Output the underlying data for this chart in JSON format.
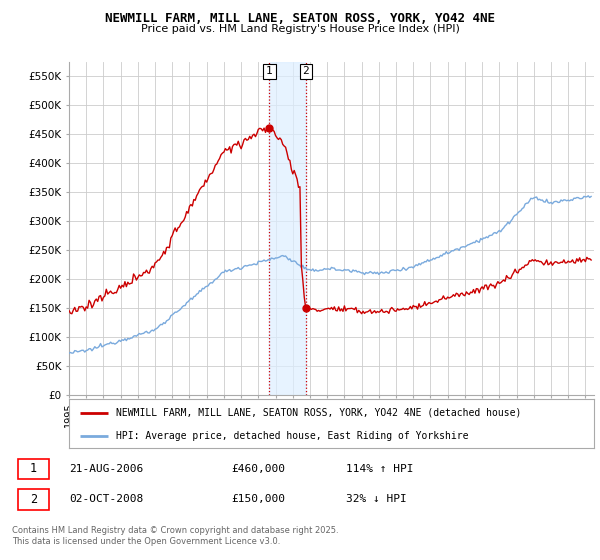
{
  "title": "NEWMILL FARM, MILL LANE, SEATON ROSS, YORK, YO42 4NE",
  "subtitle": "Price paid vs. HM Land Registry's House Price Index (HPI)",
  "ylabel_ticks": [
    "£0",
    "£50K",
    "£100K",
    "£150K",
    "£200K",
    "£250K",
    "£300K",
    "£350K",
    "£400K",
    "£450K",
    "£500K",
    "£550K"
  ],
  "ytick_vals": [
    0,
    50000,
    100000,
    150000,
    200000,
    250000,
    300000,
    350000,
    400000,
    450000,
    500000,
    550000
  ],
  "ylim": [
    0,
    575000
  ],
  "xlim_start": 1995.0,
  "xlim_end": 2025.5,
  "sale1_x": 2006.64,
  "sale1_y": 460000,
  "sale1_label": "1",
  "sale1_date": "21-AUG-2006",
  "sale1_price": "£460,000",
  "sale1_hpi": "114% ↑ HPI",
  "sale2_x": 2008.75,
  "sale2_y": 150000,
  "sale2_label": "2",
  "sale2_date": "02-OCT-2008",
  "sale2_price": "£150,000",
  "sale2_hpi": "32% ↓ HPI",
  "legend_property": "NEWMILL FARM, MILL LANE, SEATON ROSS, YORK, YO42 4NE (detached house)",
  "legend_hpi": "HPI: Average price, detached house, East Riding of Yorkshire",
  "footer": "Contains HM Land Registry data © Crown copyright and database right 2025.\nThis data is licensed under the Open Government Licence v3.0.",
  "line_property_color": "#cc0000",
  "line_hpi_color": "#7aaadd",
  "bg_color": "#ffffff",
  "grid_color": "#cccccc",
  "shade_color": "#ddeeff"
}
